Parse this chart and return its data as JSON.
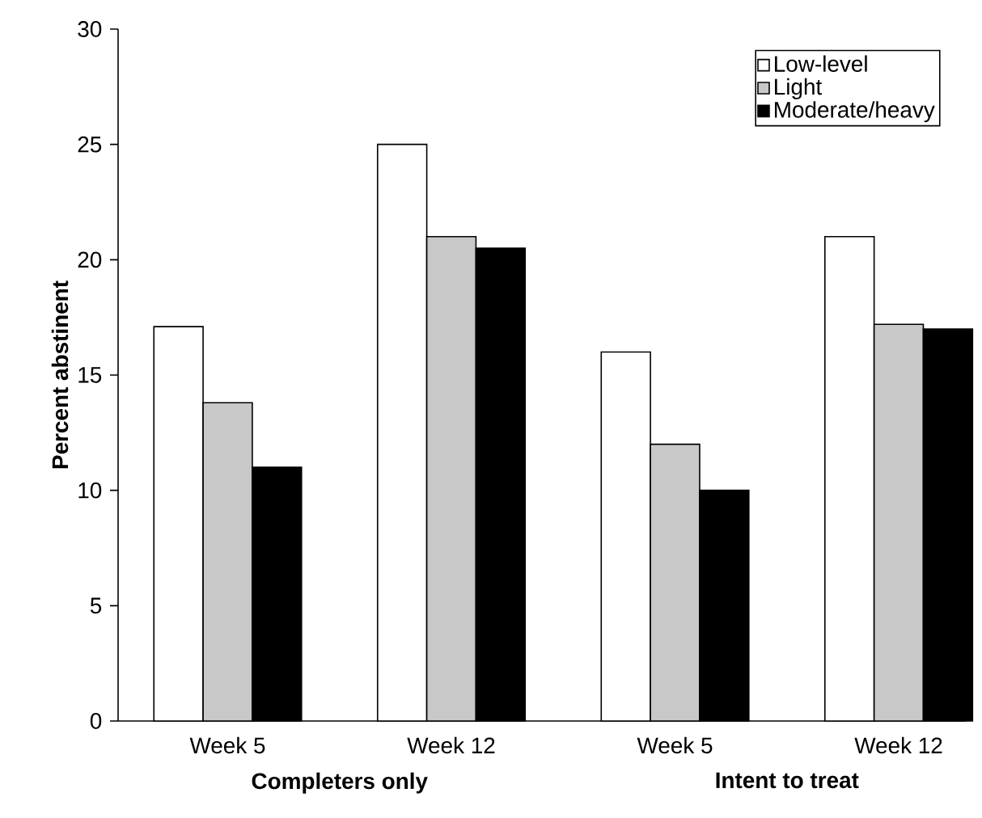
{
  "chart_data": {
    "type": "bar",
    "ylabel": "Percent abstinent",
    "categories": [
      "Week 5",
      "Week 12",
      "Week 5",
      "Week 12"
    ],
    "series": [
      {
        "name": "Low-level",
        "color": "#ffffff",
        "values": [
          17.1,
          25,
          16,
          21
        ]
      },
      {
        "name": "Light",
        "color": "#c8c8c8",
        "values": [
          13.8,
          21,
          12,
          17.2
        ]
      },
      {
        "name": "Moderate/heavy",
        "color": "#000000",
        "values": [
          11,
          20.5,
          10,
          17
        ]
      }
    ],
    "ylim": [
      0,
      30
    ],
    "yticks": [
      0,
      5,
      10,
      15,
      20,
      25,
      30
    ],
    "annotations": [
      "Completers only",
      "Intent to treat"
    ],
    "legend": "top right",
    "grid": false
  }
}
